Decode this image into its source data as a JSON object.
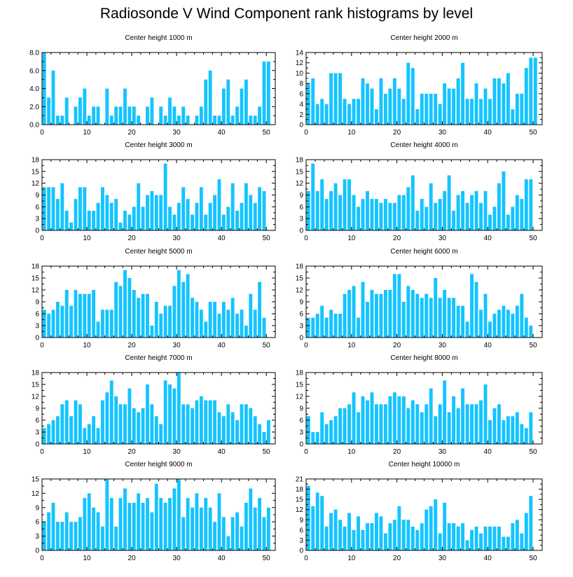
{
  "title": "Radiosonde V Wind Component rank histograms by level",
  "colors": {
    "bar": "#14c4ff",
    "axis": "#000000",
    "background": "#ffffff"
  },
  "chart_data": [
    {
      "type": "bar",
      "title": "Center height 1000 m",
      "xlabel": "",
      "ylabel": "",
      "xlim": [
        0,
        52
      ],
      "ylim": [
        0,
        8
      ],
      "xticks": [
        0,
        10,
        20,
        30,
        40,
        50
      ],
      "xtick_labels": [
        "0",
        "10",
        "20",
        "30",
        "40",
        "50"
      ],
      "yticks": [
        0,
        2,
        4,
        6,
        8
      ],
      "ytick_labels": [
        "0.0",
        "2.0",
        "4.0",
        "6.0",
        "8.0"
      ],
      "categories": [
        0,
        1,
        2,
        3,
        4,
        5,
        6,
        7,
        8,
        9,
        10,
        11,
        12,
        13,
        14,
        15,
        16,
        17,
        18,
        19,
        20,
        21,
        22,
        23,
        24,
        25,
        26,
        27,
        28,
        29,
        30,
        31,
        32,
        33,
        34,
        35,
        36,
        37,
        38,
        39,
        40,
        41,
        42,
        43,
        44,
        45,
        46,
        47,
        48,
        49,
        50,
        51
      ],
      "values": [
        8,
        3,
        6,
        1,
        1,
        3,
        0,
        2,
        3,
        4,
        1,
        2,
        2,
        0,
        4,
        1,
        2,
        2,
        4,
        2,
        2,
        1,
        0,
        2,
        3,
        0,
        2,
        1,
        3,
        2,
        1,
        2,
        1,
        0,
        1,
        2,
        5,
        6,
        1,
        1,
        4,
        5,
        1,
        2,
        4,
        5,
        1,
        1,
        2,
        7,
        7,
        0
      ]
    },
    {
      "type": "bar",
      "title": "Center height 2000 m",
      "xlabel": "",
      "ylabel": "",
      "xlim": [
        0,
        52
      ],
      "ylim": [
        0,
        14
      ],
      "xticks": [
        0,
        10,
        20,
        30,
        40,
        50
      ],
      "xtick_labels": [
        "0",
        "10",
        "20",
        "30",
        "40",
        "50"
      ],
      "yticks": [
        0,
        2,
        4,
        6,
        8,
        10,
        12,
        14
      ],
      "ytick_labels": [
        "0",
        "2",
        "4",
        "6",
        "8",
        "10",
        "12",
        "14"
      ],
      "categories": [
        0,
        1,
        2,
        3,
        4,
        5,
        6,
        7,
        8,
        9,
        10,
        11,
        12,
        13,
        14,
        15,
        16,
        17,
        18,
        19,
        20,
        21,
        22,
        23,
        24,
        25,
        26,
        27,
        28,
        29,
        30,
        31,
        32,
        33,
        34,
        35,
        36,
        37,
        38,
        39,
        40,
        41,
        42,
        43,
        44,
        45,
        46,
        47,
        48,
        49,
        50,
        51
      ],
      "values": [
        8,
        9,
        4,
        5,
        4,
        10,
        10,
        10,
        5,
        4,
        5,
        5,
        9,
        8,
        7,
        3,
        9,
        6,
        7,
        9,
        7,
        5,
        12,
        11,
        3,
        6,
        6,
        6,
        6,
        4,
        8,
        7,
        7,
        9,
        12,
        5,
        5,
        8,
        5,
        7,
        5,
        9,
        9,
        8,
        10,
        3,
        6,
        6,
        11,
        13,
        13,
        0
      ]
    },
    {
      "type": "bar",
      "title": "Center height 3000 m",
      "xlabel": "",
      "ylabel": "",
      "xlim": [
        0,
        52
      ],
      "ylim": [
        0,
        18
      ],
      "xticks": [
        0,
        10,
        20,
        30,
        40,
        50
      ],
      "xtick_labels": [
        "0",
        "10",
        "20",
        "30",
        "40",
        "50"
      ],
      "yticks": [
        0,
        3,
        6,
        9,
        12,
        15,
        18
      ],
      "ytick_labels": [
        "0",
        "3",
        "6",
        "9",
        "12",
        "15",
        "18"
      ],
      "categories": [
        0,
        1,
        2,
        3,
        4,
        5,
        6,
        7,
        8,
        9,
        10,
        11,
        12,
        13,
        14,
        15,
        16,
        17,
        18,
        19,
        20,
        21,
        22,
        23,
        24,
        25,
        26,
        27,
        28,
        29,
        30,
        31,
        32,
        33,
        34,
        35,
        36,
        37,
        38,
        39,
        40,
        41,
        42,
        43,
        44,
        45,
        46,
        47,
        48,
        49,
        50,
        51
      ],
      "values": [
        11,
        11,
        11,
        8,
        12,
        5,
        2,
        8,
        11,
        11,
        5,
        5,
        7,
        11,
        9,
        7,
        8,
        2,
        5,
        4,
        6,
        12,
        6,
        9,
        10,
        9,
        9,
        17,
        6,
        4,
        7,
        11,
        8,
        4,
        7,
        11,
        4,
        7,
        9,
        13,
        4,
        6,
        12,
        5,
        7,
        12,
        9,
        7,
        11,
        10,
        0,
        0
      ]
    },
    {
      "type": "bar",
      "title": "Center height 4000 m",
      "xlabel": "",
      "ylabel": "",
      "xlim": [
        0,
        52
      ],
      "ylim": [
        0,
        18
      ],
      "xticks": [
        0,
        10,
        20,
        30,
        40,
        50
      ],
      "xtick_labels": [
        "0",
        "10",
        "20",
        "30",
        "40",
        "50"
      ],
      "yticks": [
        0,
        3,
        6,
        9,
        12,
        15,
        18
      ],
      "ytick_labels": [
        "0",
        "3",
        "6",
        "9",
        "12",
        "15",
        "18"
      ],
      "categories": [
        0,
        1,
        2,
        3,
        4,
        5,
        6,
        7,
        8,
        9,
        10,
        11,
        12,
        13,
        14,
        15,
        16,
        17,
        18,
        19,
        20,
        21,
        22,
        23,
        24,
        25,
        26,
        27,
        28,
        29,
        30,
        31,
        32,
        33,
        34,
        35,
        36,
        37,
        38,
        39,
        40,
        41,
        42,
        43,
        44,
        45,
        46,
        47,
        48,
        49,
        50,
        51
      ],
      "values": [
        10,
        17,
        10,
        13,
        8,
        10,
        12,
        9,
        13,
        13,
        9,
        6,
        8,
        10,
        8,
        8,
        7,
        8,
        7,
        7,
        9,
        9,
        11,
        14,
        5,
        8,
        6,
        12,
        7,
        8,
        10,
        14,
        5,
        9,
        10,
        7,
        9,
        10,
        7,
        10,
        4,
        6,
        12,
        15,
        4,
        6,
        9,
        8,
        13,
        13,
        0,
        0
      ]
    },
    {
      "type": "bar",
      "title": "Center height 5000 m",
      "xlabel": "",
      "ylabel": "",
      "xlim": [
        0,
        52
      ],
      "ylim": [
        0,
        18
      ],
      "xticks": [
        0,
        10,
        20,
        30,
        40,
        50
      ],
      "xtick_labels": [
        "0",
        "10",
        "20",
        "30",
        "40",
        "50"
      ],
      "yticks": [
        0,
        3,
        6,
        9,
        12,
        15,
        18
      ],
      "ytick_labels": [
        "0",
        "3",
        "6",
        "9",
        "12",
        "15",
        "18"
      ],
      "categories": [
        0,
        1,
        2,
        3,
        4,
        5,
        6,
        7,
        8,
        9,
        10,
        11,
        12,
        13,
        14,
        15,
        16,
        17,
        18,
        19,
        20,
        21,
        22,
        23,
        24,
        25,
        26,
        27,
        28,
        29,
        30,
        31,
        32,
        33,
        34,
        35,
        36,
        37,
        38,
        39,
        40,
        41,
        42,
        43,
        44,
        45,
        46,
        47,
        48,
        49,
        50,
        51
      ],
      "values": [
        7,
        6,
        7,
        9,
        8,
        12,
        8,
        12,
        11,
        11,
        11,
        12,
        4,
        7,
        7,
        7,
        14,
        13,
        17,
        15,
        12,
        10,
        11,
        11,
        3,
        9,
        6,
        8,
        8,
        13,
        17,
        14,
        16,
        10,
        9,
        7,
        4,
        9,
        9,
        6,
        9,
        7,
        10,
        6,
        7,
        3,
        11,
        7,
        14,
        5,
        0,
        0
      ]
    },
    {
      "type": "bar",
      "title": "Center height 6000 m",
      "xlabel": "",
      "ylabel": "",
      "xlim": [
        0,
        52
      ],
      "ylim": [
        0,
        18
      ],
      "xticks": [
        0,
        10,
        20,
        30,
        40,
        50
      ],
      "xtick_labels": [
        "0",
        "10",
        "20",
        "30",
        "40",
        "50"
      ],
      "yticks": [
        0,
        3,
        6,
        9,
        12,
        15,
        18
      ],
      "ytick_labels": [
        "0",
        "3",
        "6",
        "9",
        "12",
        "15",
        "18"
      ],
      "categories": [
        0,
        1,
        2,
        3,
        4,
        5,
        6,
        7,
        8,
        9,
        10,
        11,
        12,
        13,
        14,
        15,
        16,
        17,
        18,
        19,
        20,
        21,
        22,
        23,
        24,
        25,
        26,
        27,
        28,
        29,
        30,
        31,
        32,
        33,
        34,
        35,
        36,
        37,
        38,
        39,
        40,
        41,
        42,
        43,
        44,
        45,
        46,
        47,
        48,
        49,
        50,
        51
      ],
      "values": [
        5,
        5,
        6,
        8,
        5,
        7,
        6,
        6,
        11,
        12,
        13,
        5,
        14,
        9,
        12,
        11,
        11,
        12,
        12,
        16,
        16,
        9,
        13,
        12,
        11,
        10,
        11,
        10,
        15,
        10,
        12,
        10,
        10,
        8,
        8,
        4,
        16,
        14,
        7,
        11,
        4,
        6,
        7,
        8,
        7,
        6,
        8,
        11,
        5,
        3,
        0,
        0
      ]
    },
    {
      "type": "bar",
      "title": "Center height 7000 m",
      "xlabel": "",
      "ylabel": "",
      "xlim": [
        0,
        52
      ],
      "ylim": [
        0,
        18
      ],
      "xticks": [
        0,
        10,
        20,
        30,
        40,
        50
      ],
      "xtick_labels": [
        "0",
        "10",
        "20",
        "30",
        "40",
        "50"
      ],
      "yticks": [
        0,
        3,
        6,
        9,
        12,
        15,
        18
      ],
      "ytick_labels": [
        "0",
        "3",
        "6",
        "9",
        "12",
        "15",
        "18"
      ],
      "categories": [
        0,
        1,
        2,
        3,
        4,
        5,
        6,
        7,
        8,
        9,
        10,
        11,
        12,
        13,
        14,
        15,
        16,
        17,
        18,
        19,
        20,
        21,
        22,
        23,
        24,
        25,
        26,
        27,
        28,
        29,
        30,
        31,
        32,
        33,
        34,
        35,
        36,
        37,
        38,
        39,
        40,
        41,
        42,
        43,
        44,
        45,
        46,
        47,
        48,
        49,
        50,
        51
      ],
      "values": [
        4,
        5,
        6,
        7,
        10,
        11,
        7,
        11,
        10,
        4,
        5,
        7,
        4,
        11,
        13,
        16,
        12,
        10,
        10,
        14,
        9,
        8,
        9,
        15,
        10,
        7,
        5,
        16,
        15,
        14,
        18,
        10,
        10,
        9,
        11,
        12,
        11,
        11,
        11,
        8,
        7,
        10,
        8,
        6,
        10,
        10,
        9,
        7,
        5,
        3,
        6,
        0
      ]
    },
    {
      "type": "bar",
      "title": "Center height 8000 m",
      "xlabel": "",
      "ylabel": "",
      "xlim": [
        0,
        52
      ],
      "ylim": [
        0,
        18
      ],
      "xticks": [
        0,
        10,
        20,
        30,
        40,
        50
      ],
      "xtick_labels": [
        "0",
        "10",
        "20",
        "30",
        "40",
        "50"
      ],
      "yticks": [
        0,
        3,
        6,
        9,
        12,
        15,
        18
      ],
      "ytick_labels": [
        "0",
        "3",
        "6",
        "9",
        "12",
        "15",
        "18"
      ],
      "categories": [
        0,
        1,
        2,
        3,
        4,
        5,
        6,
        7,
        8,
        9,
        10,
        11,
        12,
        13,
        14,
        15,
        16,
        17,
        18,
        19,
        20,
        21,
        22,
        23,
        24,
        25,
        26,
        27,
        28,
        29,
        30,
        31,
        32,
        33,
        34,
        35,
        36,
        37,
        38,
        39,
        40,
        41,
        42,
        43,
        44,
        45,
        46,
        47,
        48,
        49,
        50,
        51
      ],
      "values": [
        7,
        3,
        3,
        8,
        5,
        6,
        7,
        9,
        9,
        10,
        13,
        8,
        12,
        11,
        13,
        10,
        10,
        10,
        12,
        13,
        12,
        12,
        9,
        11,
        10,
        8,
        10,
        14,
        7,
        10,
        16,
        8,
        12,
        9,
        14,
        10,
        10,
        10,
        11,
        15,
        6,
        9,
        10,
        6,
        7,
        7,
        8,
        5,
        4,
        8,
        0,
        0
      ]
    },
    {
      "type": "bar",
      "title": "Center height 9000 m",
      "xlabel": "",
      "ylabel": "",
      "xlim": [
        0,
        52
      ],
      "ylim": [
        0,
        15
      ],
      "xticks": [
        0,
        10,
        20,
        30,
        40,
        50
      ],
      "xtick_labels": [
        "0",
        "10",
        "20",
        "30",
        "40",
        "50"
      ],
      "yticks": [
        0,
        3,
        6,
        9,
        12,
        15
      ],
      "ytick_labels": [
        "0",
        "3",
        "6",
        "9",
        "12",
        "15"
      ],
      "categories": [
        0,
        1,
        2,
        3,
        4,
        5,
        6,
        7,
        8,
        9,
        10,
        11,
        12,
        13,
        14,
        15,
        16,
        17,
        18,
        19,
        20,
        21,
        22,
        23,
        24,
        25,
        26,
        27,
        28,
        29,
        30,
        31,
        32,
        33,
        34,
        35,
        36,
        37,
        38,
        39,
        40,
        41,
        42,
        43,
        44,
        45,
        46,
        47,
        48,
        49,
        50,
        51
      ],
      "values": [
        6,
        8,
        10,
        6,
        6,
        8,
        6,
        6,
        7,
        11,
        12,
        9,
        8,
        5,
        15,
        11,
        5,
        11,
        13,
        10,
        10,
        12,
        10,
        11,
        8,
        14,
        11,
        10,
        11,
        13,
        15,
        7,
        11,
        9,
        12,
        9,
        11,
        9,
        6,
        12,
        7,
        3,
        7,
        8,
        5,
        10,
        13,
        9,
        11,
        7,
        9,
        0
      ]
    },
    {
      "type": "bar",
      "title": "Center height 10000 m",
      "xlabel": "",
      "ylabel": "",
      "xlim": [
        0,
        52
      ],
      "ylim": [
        0,
        21
      ],
      "xticks": [
        0,
        10,
        20,
        30,
        40,
        50
      ],
      "xtick_labels": [
        "0",
        "10",
        "20",
        "30",
        "40",
        "50"
      ],
      "yticks": [
        0,
        3,
        6,
        9,
        12,
        15,
        18,
        21
      ],
      "ytick_labels": [
        "0",
        "3",
        "6",
        "9",
        "12",
        "15",
        "18",
        "21"
      ],
      "categories": [
        0,
        1,
        2,
        3,
        4,
        5,
        6,
        7,
        8,
        9,
        10,
        11,
        12,
        13,
        14,
        15,
        16,
        17,
        18,
        19,
        20,
        21,
        22,
        23,
        24,
        25,
        26,
        27,
        28,
        29,
        30,
        31,
        32,
        33,
        34,
        35,
        36,
        37,
        38,
        39,
        40,
        41,
        42,
        43,
        44,
        45,
        46,
        47,
        48,
        49,
        50,
        51
      ],
      "values": [
        19,
        13,
        17,
        16,
        7,
        11,
        12,
        9,
        7,
        11,
        6,
        10,
        6,
        8,
        8,
        11,
        10,
        5,
        8,
        9,
        13,
        9,
        9,
        7,
        6,
        8,
        12,
        13,
        15,
        5,
        14,
        8,
        8,
        7,
        8,
        3,
        6,
        7,
        5,
        7,
        7,
        7,
        7,
        4,
        4,
        8,
        9,
        5,
        11,
        16,
        0,
        0
      ]
    }
  ]
}
